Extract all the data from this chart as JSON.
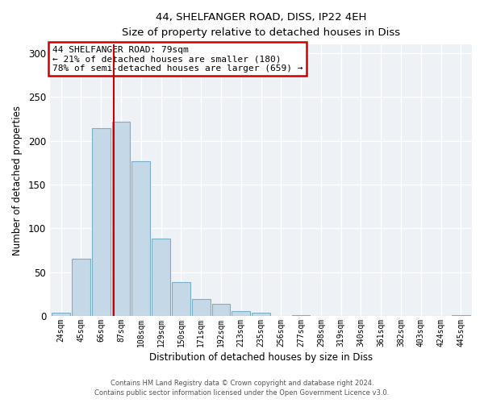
{
  "title": "44, SHELFANGER ROAD, DISS, IP22 4EH",
  "subtitle": "Size of property relative to detached houses in Diss",
  "xlabel": "Distribution of detached houses by size in Diss",
  "ylabel": "Number of detached properties",
  "bin_labels": [
    "24sqm",
    "45sqm",
    "66sqm",
    "87sqm",
    "108sqm",
    "129sqm",
    "150sqm",
    "171sqm",
    "192sqm",
    "213sqm",
    "235sqm",
    "256sqm",
    "277sqm",
    "298sqm",
    "319sqm",
    "340sqm",
    "361sqm",
    "382sqm",
    "403sqm",
    "424sqm",
    "445sqm"
  ],
  "bar_values": [
    4,
    65,
    214,
    222,
    177,
    88,
    39,
    19,
    14,
    6,
    4,
    0,
    1,
    0,
    0,
    0,
    0,
    0,
    0,
    0,
    1
  ],
  "bar_color": "#c5d8e8",
  "bar_edgecolor": "#7aafc8",
  "vline_x": 2.62,
  "vline_color": "#cc0000",
  "annotation_text": "44 SHELFANGER ROAD: 79sqm\n← 21% of detached houses are smaller (180)\n78% of semi-detached houses are larger (659) →",
  "annotation_box_color": "white",
  "annotation_box_edgecolor": "#cc0000",
  "ylim": [
    0,
    310
  ],
  "yticks": [
    0,
    50,
    100,
    150,
    200,
    250,
    300
  ],
  "footer_line1": "Contains HM Land Registry data © Crown copyright and database right 2024.",
  "footer_line2": "Contains public sector information licensed under the Open Government Licence v3.0.",
  "bg_color": "#eef2f7"
}
